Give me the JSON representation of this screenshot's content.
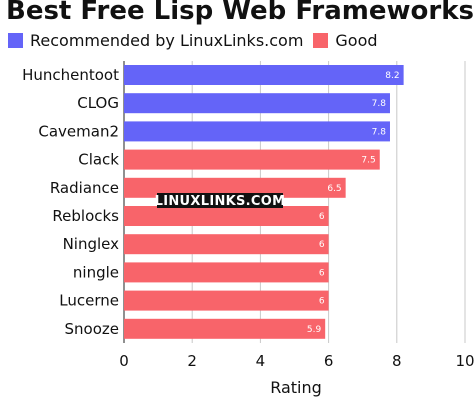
{
  "chart_data": {
    "type": "bar",
    "orientation": "horizontal",
    "title": "Best Free Lisp Web Frameworks",
    "xlabel": "Rating",
    "ylabel": "",
    "xlim": [
      0,
      10
    ],
    "xticks": [
      0,
      2,
      4,
      6,
      8,
      10
    ],
    "categories": [
      "Hunchentoot",
      "CLOG",
      "Caveman2",
      "Clack",
      "Radiance",
      "Reblocks",
      "Ninglex",
      "ningle",
      "Lucerne",
      "Snooze"
    ],
    "values": [
      8.2,
      7.8,
      7.8,
      7.5,
      6.5,
      6,
      6,
      6,
      6,
      5.9
    ],
    "value_labels": [
      "8.2",
      "7.8",
      "7.8",
      "7.5",
      "6.5",
      "6",
      "6",
      "6",
      "6",
      "5.9"
    ],
    "groups": [
      "Recommended by LinuxLinks.com",
      "Recommended by LinuxLinks.com",
      "Recommended by LinuxLinks.com",
      "Good",
      "Good",
      "Good",
      "Good",
      "Good",
      "Good",
      "Good"
    ],
    "legend": [
      {
        "name": "Recommended by LinuxLinks.com",
        "color": "#6464f8"
      },
      {
        "name": "Good",
        "color": "#f8646a"
      }
    ],
    "legend_position": "top-left",
    "grid": "vertical",
    "watermark": "LINUXLINKS.COM"
  }
}
